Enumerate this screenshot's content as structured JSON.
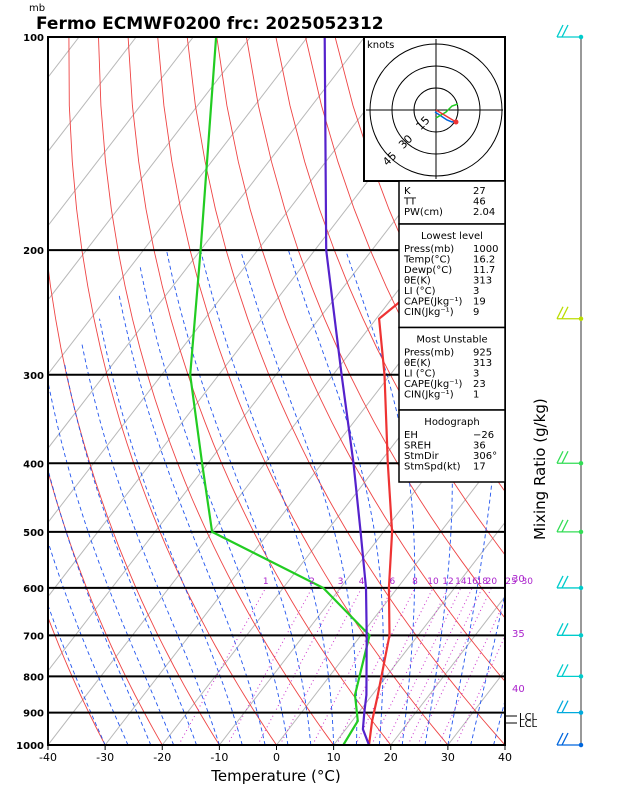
{
  "chart_data": {
    "type": "skew-t",
    "title": "Fermo ECMWF0200 frc: 2025052312",
    "pressure_unit": "mb",
    "xlabel": "Temperature (°C)",
    "right_axis_label": "Mixing Ratio (g/kg)",
    "x_ticks": [
      "-40",
      "-30",
      "-20",
      "-10",
      "0",
      "10",
      "20",
      "30",
      "40"
    ],
    "y_ticks": [
      "100",
      "200",
      "300",
      "400",
      "500",
      "600",
      "700",
      "800",
      "900",
      "1000"
    ],
    "xlim": [
      -40,
      40
    ],
    "ylim": [
      1000,
      100
    ],
    "mixing_ratio_labels": [
      "1",
      "2",
      "3",
      "4",
      "6",
      "8",
      "10",
      "12",
      "14",
      "16",
      "18",
      "20",
      "25",
      "30"
    ],
    "theta_e_labels": [
      "30",
      "35",
      "40"
    ],
    "lcl_labels": [
      "LCL",
      "LCL"
    ],
    "series": [
      {
        "role": "temperature",
        "color": "#ee3333",
        "points": [
          [
            1000,
            16.2
          ],
          [
            925,
            13.5
          ],
          [
            850,
            11.0
          ],
          [
            700,
            5.0
          ],
          [
            600,
            -1.5
          ],
          [
            500,
            -8.5
          ],
          [
            400,
            -18.5
          ],
          [
            300,
            -31.0
          ],
          [
            250,
            -39.5
          ],
          [
            200,
            -34.0
          ],
          [
            150,
            -26.0
          ],
          [
            100,
            -13.0
          ]
        ]
      },
      {
        "role": "dewpoint",
        "color": "#22cc22",
        "points": [
          [
            1000,
            11.7
          ],
          [
            925,
            11.0
          ],
          [
            850,
            7.0
          ],
          [
            700,
            1.5
          ],
          [
            600,
            -13.0
          ],
          [
            500,
            -40.0
          ],
          [
            400,
            -51.0
          ],
          [
            300,
            -65.0
          ],
          [
            200,
            -80.0
          ],
          [
            100,
            -106.0
          ]
        ]
      },
      {
        "role": "parcel",
        "color": "#5522cc",
        "points": [
          [
            1000,
            16.2
          ],
          [
            950,
            13.0
          ],
          [
            900,
            11.0
          ],
          [
            850,
            9.0
          ],
          [
            800,
            6.5
          ],
          [
            700,
            1.0
          ],
          [
            600,
            -5.5
          ],
          [
            500,
            -14.0
          ],
          [
            400,
            -24.5
          ],
          [
            300,
            -38.5
          ],
          [
            200,
            -58.0
          ],
          [
            100,
            -87.0
          ]
        ]
      }
    ],
    "hodograph": {
      "unit_label": "knots",
      "ring_labels": [
        "15",
        "30",
        "45"
      ]
    },
    "indices": {
      "top": [
        {
          "label": "K",
          "value": "27"
        },
        {
          "label": "TT",
          "value": "46"
        },
        {
          "label": "PW(cm)",
          "value": "2.04"
        }
      ],
      "lowest_level": {
        "header": "Lowest level",
        "rows": [
          {
            "label": "Press(mb)",
            "value": "1000"
          },
          {
            "label": "Temp(°C)",
            "value": "16.2"
          },
          {
            "label": "Dewp(°C)",
            "value": "11.7"
          },
          {
            "label": "θE(K)",
            "value": "313"
          },
          {
            "label": "LI (°C)",
            "value": "3"
          },
          {
            "label": "CAPE(Jkg⁻¹)",
            "value": "19"
          },
          {
            "label": "CIN(Jkg⁻¹)",
            "value": "9"
          }
        ]
      },
      "most_unstable": {
        "header": "Most Unstable",
        "rows": [
          {
            "label": "Press(mb)",
            "value": "925"
          },
          {
            "label": "θE(K)",
            "value": "313"
          },
          {
            "label": "LI (°C)",
            "value": "3"
          },
          {
            "label": "CAPE(Jkg⁻¹)",
            "value": "23"
          },
          {
            "label": "CIN(Jkg⁻¹)",
            "value": "1"
          }
        ]
      },
      "hodograph_params": {
        "header": "Hodograph",
        "rows": [
          {
            "label": "EH",
            "value": "−26"
          },
          {
            "label": "SREH",
            "value": "36"
          },
          {
            "label": "StmDir",
            "value": "306°"
          },
          {
            "label": "StmSpd(kt)",
            "value": "17"
          }
        ]
      }
    },
    "wind_barbs": [
      {
        "p": 100,
        "color": "#00cccc"
      },
      {
        "p": 250,
        "color": "#bbdd00"
      },
      {
        "p": 400,
        "color": "#33dd55"
      },
      {
        "p": 500,
        "color": "#33dd55"
      },
      {
        "p": 600,
        "color": "#00cccc"
      },
      {
        "p": 700,
        "color": "#00cccc"
      },
      {
        "p": 800,
        "color": "#00cccc"
      },
      {
        "p": 900,
        "color": "#00aadd"
      },
      {
        "p": 1000,
        "color": "#0066dd"
      }
    ]
  }
}
